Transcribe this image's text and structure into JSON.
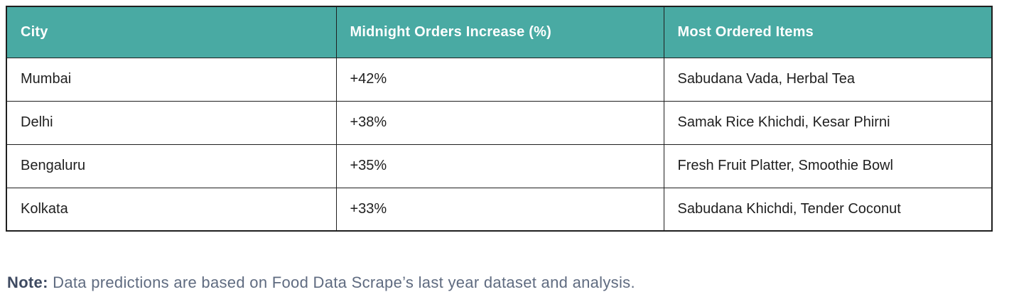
{
  "chart_data": {
    "type": "table",
    "columns": [
      "City",
      "Midnight Orders Increase (%)",
      "Most Ordered Items"
    ],
    "rows": [
      [
        "Mumbai",
        "+42%",
        "Sabudana Vada, Herbal Tea"
      ],
      [
        "Delhi",
        "+38%",
        "Samak Rice Khichdi, Kesar Phirni"
      ],
      [
        "Bengaluru",
        "+35%",
        "Fresh Fruit Platter, Smoothie Bowl"
      ],
      [
        "Kolkata",
        "+33%",
        "Sabudana Khichdi, Tender Coconut"
      ]
    ],
    "title": "",
    "layout_hints": {
      "header_position": "top",
      "grid": "on"
    }
  },
  "note": {
    "label": "Note:",
    "text": "Data predictions are based on Food Data Scrape’s last year dataset and analysis."
  },
  "colors": {
    "header_bg": "#49AAA3",
    "header_text": "#FFFFFF",
    "body_text": "#1F1F1F",
    "border": "#1F1F1F",
    "note_label": "#3E4A61",
    "note_text": "#5F6B80"
  }
}
